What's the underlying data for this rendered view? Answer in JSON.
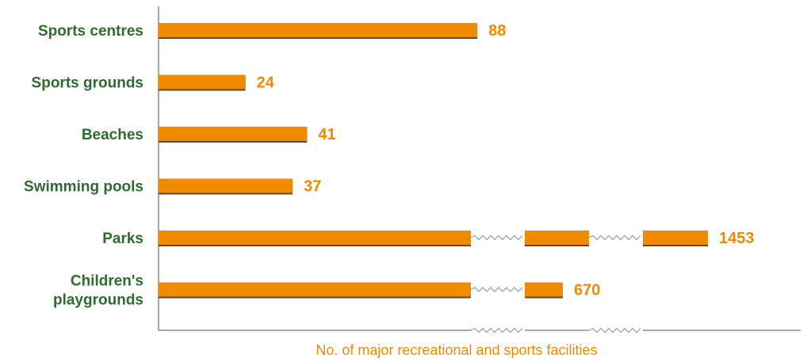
{
  "chart_data": {
    "type": "bar",
    "orientation": "horizontal",
    "categories": [
      [
        "Sports centres"
      ],
      [
        "Sports grounds"
      ],
      [
        "Beaches"
      ],
      [
        "Swimming pools"
      ],
      [
        "Parks"
      ],
      [
        "Children's",
        "playgrounds"
      ]
    ],
    "values": [
      88,
      24,
      41,
      37,
      1453,
      670
    ],
    "value_labels": [
      "88",
      "24",
      "41",
      "37",
      "1453",
      "670"
    ],
    "axis_breaks": 2,
    "xlabel": "No. of major recreational and sports facilities",
    "ylabel": "",
    "title": "",
    "grid": false,
    "legend": "none"
  },
  "colors": {
    "bar": "#f08a00",
    "bar_shadow": "#5a4a3a",
    "category_text": "#2e6b2e",
    "value_text": "#f08a00",
    "axis": "#8a8a8a",
    "break_line": "#9a9a9a"
  }
}
